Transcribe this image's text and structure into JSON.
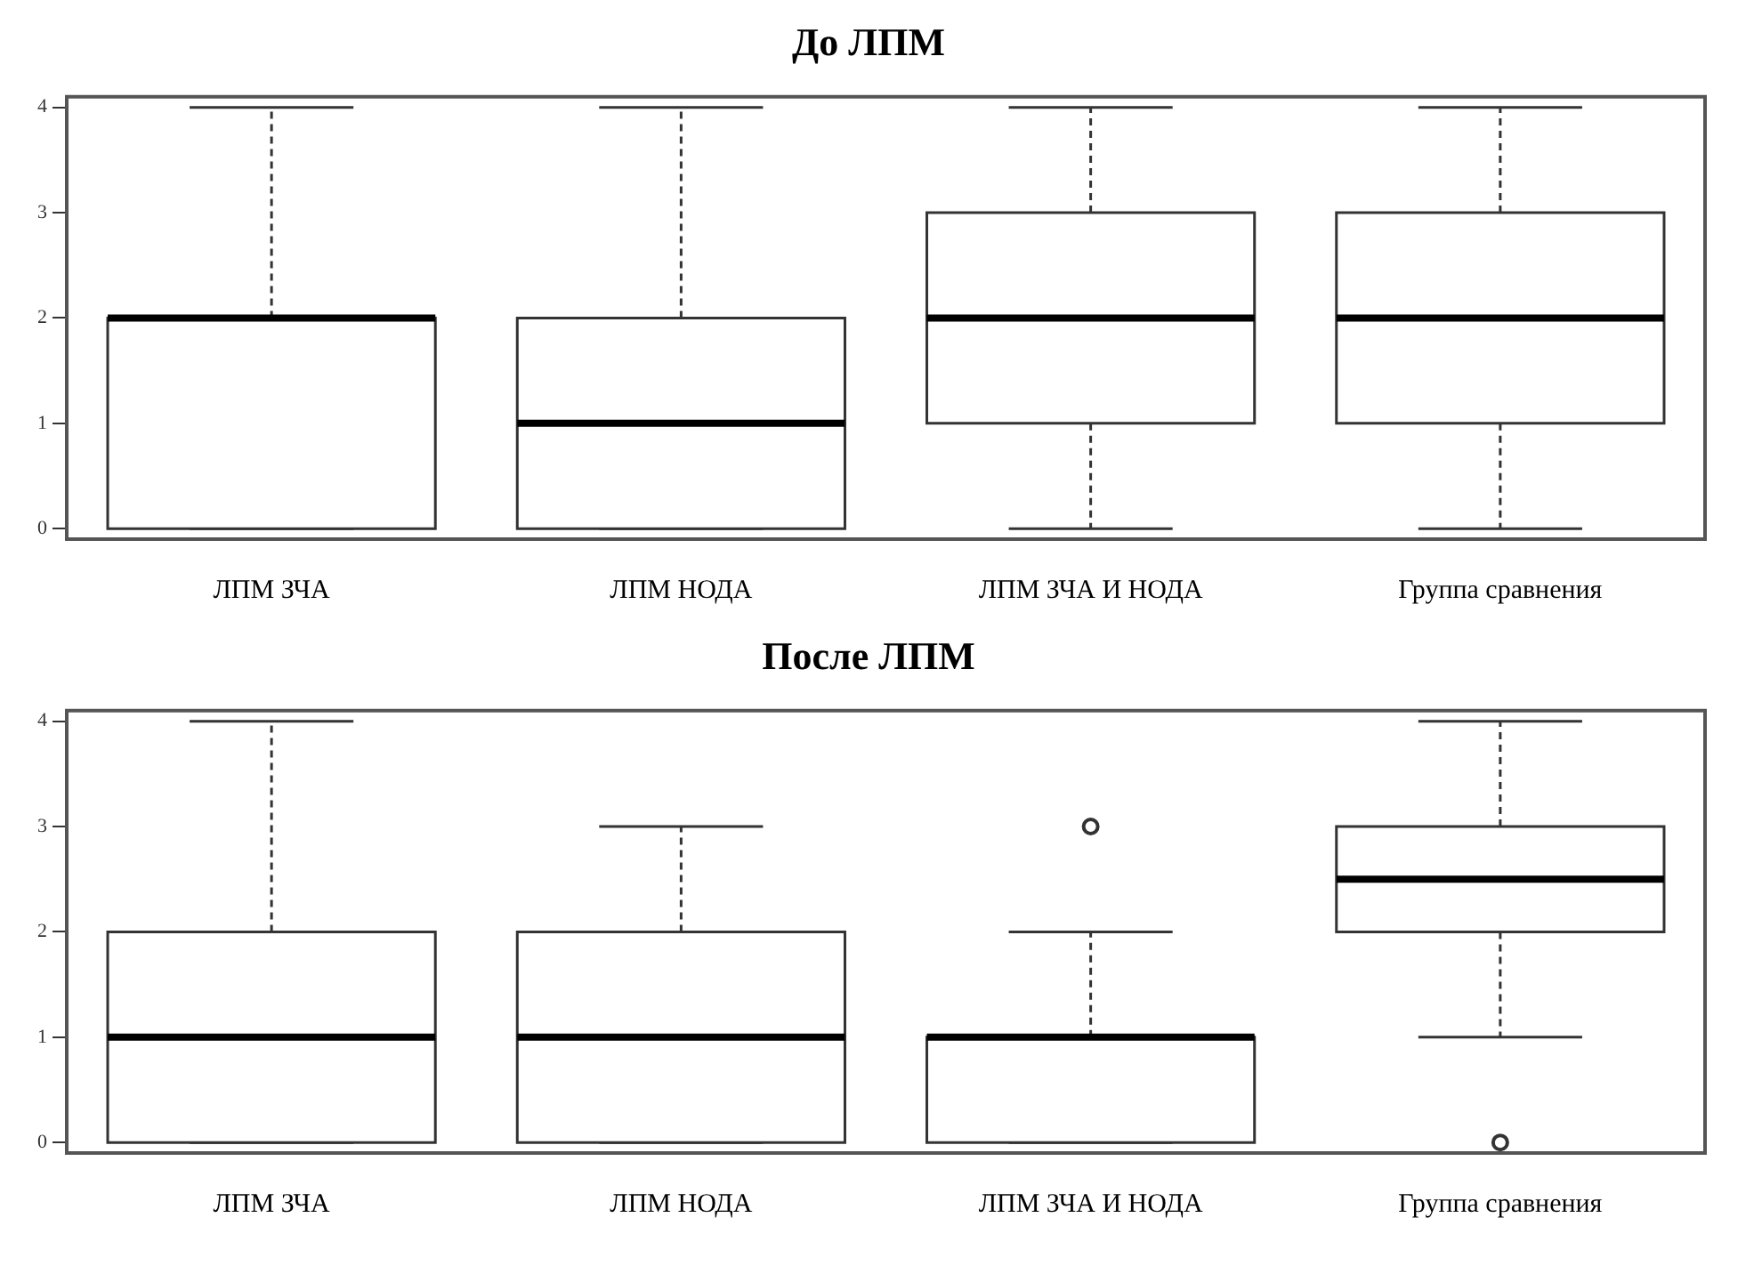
{
  "chart_data": [
    {
      "type": "box",
      "title": "До ЛПМ",
      "categories": [
        "ЛПМ ЗЧА",
        "ЛПМ НОДА",
        "ЛПМ ЗЧА И НОДА",
        "Группа сравнения"
      ],
      "ylim": [
        -0.1,
        4.1
      ],
      "yticks": [
        0,
        1,
        2,
        3,
        4
      ],
      "grid": false,
      "legend": false,
      "boxes": [
        {
          "low": 0,
          "q1": 0,
          "median": 2,
          "q3": 2,
          "high": 4
        },
        {
          "low": 0,
          "q1": 0,
          "median": 1,
          "q3": 2,
          "high": 4
        },
        {
          "low": 0,
          "q1": 1,
          "median": 2,
          "q3": 3,
          "high": 4
        },
        {
          "low": 0,
          "q1": 1,
          "median": 2,
          "q3": 3,
          "high": 4
        }
      ]
    },
    {
      "type": "box",
      "title": "После ЛПМ",
      "categories": [
        "ЛПМ ЗЧА",
        "ЛПМ НОДА",
        "ЛПМ ЗЧА И НОДА",
        "Группа сравнения"
      ],
      "ylim": [
        -0.1,
        4.1
      ],
      "yticks": [
        0,
        1,
        2,
        3,
        4
      ],
      "grid": false,
      "legend": false,
      "boxes": [
        {
          "low": 0,
          "q1": 0,
          "median": 1,
          "q3": 2,
          "high": 4
        },
        {
          "low": 0,
          "q1": 0,
          "median": 1,
          "q3": 2,
          "high": 3
        },
        {
          "low": 0,
          "q1": 0,
          "median": 1,
          "q3": 1,
          "high": 2,
          "outliers": [
            3
          ]
        },
        {
          "low": 1,
          "q1": 2,
          "median": 2.5,
          "q3": 3,
          "high": 4,
          "outliers": [
            0
          ]
        }
      ]
    }
  ]
}
